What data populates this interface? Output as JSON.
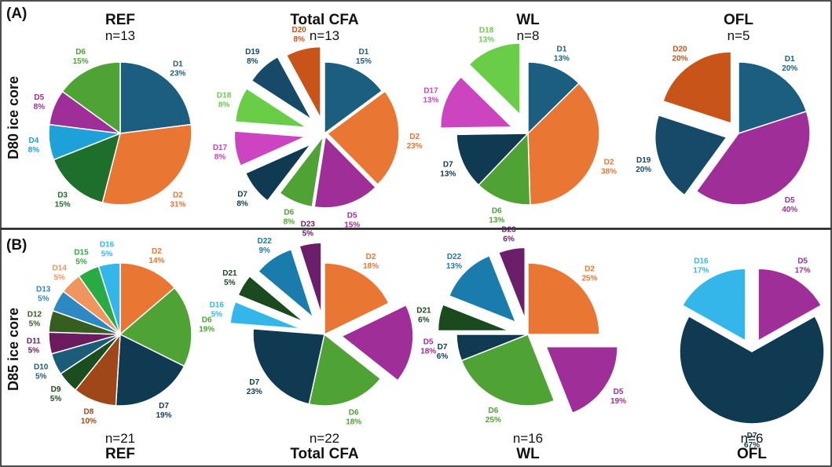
{
  "panels": [
    {
      "label": "(A)",
      "row_title": "D80 ice core"
    },
    {
      "label": "(B)",
      "row_title": "D85 ice core"
    }
  ],
  "colors": {
    "D1": "#1b5e80",
    "D2": "#ea7634",
    "D3": "#1e6e2c",
    "D4": "#1ea0d8",
    "D5": "#a02e98",
    "D6": "#4ea334",
    "D7": "#0f3a52",
    "D8": "#a0471a",
    "D9": "#1c4d20",
    "D10": "#1b5d78",
    "D11": "#6b1b5e",
    "D12": "#355e20",
    "D13": "#2e89c2",
    "D14": "#f0955e",
    "D15": "#29aa42",
    "D16": "#34b6ea",
    "D17": "#cc44c0",
    "D18": "#6acd48",
    "D19": "#174a68",
    "D20": "#c8541a",
    "D21": "#1a4a1e",
    "D22": "#1a7bad",
    "D23": "#6b1f6a"
  },
  "chart_data": [
    {
      "type": "pie",
      "panel": "A",
      "title": "REF",
      "n_label": "n=13",
      "slices": [
        {
          "name": "D1",
          "value": 23,
          "label": "23%"
        },
        {
          "name": "D2",
          "value": 31,
          "label": "31%"
        },
        {
          "name": "D3",
          "value": 15,
          "label": "15%"
        },
        {
          "name": "D4",
          "value": 8,
          "label": "8%"
        },
        {
          "name": "D5",
          "value": 8,
          "label": "8%"
        },
        {
          "name": "D6",
          "value": 15,
          "label": "15%"
        }
      ]
    },
    {
      "type": "pie",
      "panel": "A",
      "title": "Total CFA",
      "n_label": "n=13",
      "slices": [
        {
          "name": "D1",
          "value": 15,
          "label": "15%"
        },
        {
          "name": "D2",
          "value": 23,
          "label": "23%"
        },
        {
          "name": "D5",
          "value": 15,
          "label": "15%"
        },
        {
          "name": "D6",
          "value": 8,
          "label": "8%"
        },
        {
          "name": "D7",
          "value": 8,
          "label": "8%"
        },
        {
          "name": "D17",
          "value": 8,
          "label": "8%"
        },
        {
          "name": "D18",
          "value": 8,
          "label": "8%"
        },
        {
          "name": "D19",
          "value": 8,
          "label": "8%"
        },
        {
          "name": "D20",
          "value": 8,
          "label": "8%"
        }
      ]
    },
    {
      "type": "pie",
      "panel": "A",
      "title": "WL",
      "n_label": "n=8",
      "slices": [
        {
          "name": "D1",
          "value": 13,
          "label": "13%"
        },
        {
          "name": "D2",
          "value": 38,
          "label": "38%"
        },
        {
          "name": "D6",
          "value": 13,
          "label": "13%"
        },
        {
          "name": "D7",
          "value": 13,
          "label": "13%"
        },
        {
          "name": "D17",
          "value": 13,
          "label": "13%"
        },
        {
          "name": "D18",
          "value": 13,
          "label": "13%"
        }
      ]
    },
    {
      "type": "pie",
      "panel": "A",
      "title": "OFL",
      "n_label": "n=5",
      "slices": [
        {
          "name": "D1",
          "value": 20,
          "label": "20%"
        },
        {
          "name": "D5",
          "value": 40,
          "label": "40%"
        },
        {
          "name": "D19",
          "value": 20,
          "label": "20%"
        },
        {
          "name": "D20",
          "value": 20,
          "label": "20%"
        }
      ]
    },
    {
      "type": "pie",
      "panel": "B",
      "title": "REF",
      "n_label": "n=21",
      "slices": [
        {
          "name": "D2",
          "value": 14,
          "label": "14%"
        },
        {
          "name": "D6",
          "value": 19,
          "label": "19%"
        },
        {
          "name": "D7",
          "value": 19,
          "label": "19%"
        },
        {
          "name": "D8",
          "value": 10,
          "label": "10%"
        },
        {
          "name": "D9",
          "value": 5,
          "label": "5%"
        },
        {
          "name": "D10",
          "value": 5,
          "label": "5%"
        },
        {
          "name": "D11",
          "value": 5,
          "label": "5%"
        },
        {
          "name": "D12",
          "value": 5,
          "label": "5%"
        },
        {
          "name": "D13",
          "value": 5,
          "label": "5%"
        },
        {
          "name": "D14",
          "value": 5,
          "label": "5%"
        },
        {
          "name": "D15",
          "value": 5,
          "label": "5%"
        },
        {
          "name": "D16",
          "value": 5,
          "label": "5%"
        }
      ]
    },
    {
      "type": "pie",
      "panel": "B",
      "title": "Total CFA",
      "n_label": "n=22",
      "slices": [
        {
          "name": "D2",
          "value": 18,
          "label": "18%"
        },
        {
          "name": "D5",
          "value": 18,
          "label": "18%"
        },
        {
          "name": "D6",
          "value": 18,
          "label": "18%"
        },
        {
          "name": "D7",
          "value": 23,
          "label": "23%"
        },
        {
          "name": "D16",
          "value": 5,
          "label": "5%"
        },
        {
          "name": "D21",
          "value": 5,
          "label": "5%"
        },
        {
          "name": "D22",
          "value": 9,
          "label": "9%"
        },
        {
          "name": "D23",
          "value": 5,
          "label": "5%"
        }
      ]
    },
    {
      "type": "pie",
      "panel": "B",
      "title": "WL",
      "n_label": "n=16",
      "slices": [
        {
          "name": "D2",
          "value": 25,
          "label": "25%"
        },
        {
          "name": "D5",
          "value": 19,
          "label": "19%"
        },
        {
          "name": "D6",
          "value": 25,
          "label": "25%"
        },
        {
          "name": "D7",
          "value": 6,
          "label": "6%"
        },
        {
          "name": "D21",
          "value": 6,
          "label": "6%"
        },
        {
          "name": "D22",
          "value": 13,
          "label": "13%"
        },
        {
          "name": "D23",
          "value": 6,
          "label": "6%"
        }
      ]
    },
    {
      "type": "pie",
      "panel": "B",
      "title": "OFL",
      "n_label": "n=6",
      "slices": [
        {
          "name": "D5",
          "value": 17,
          "label": "17%"
        },
        {
          "name": "D7",
          "value": 67,
          "label": "67%"
        },
        {
          "name": "D16",
          "value": 17,
          "label": "17%"
        }
      ]
    }
  ]
}
